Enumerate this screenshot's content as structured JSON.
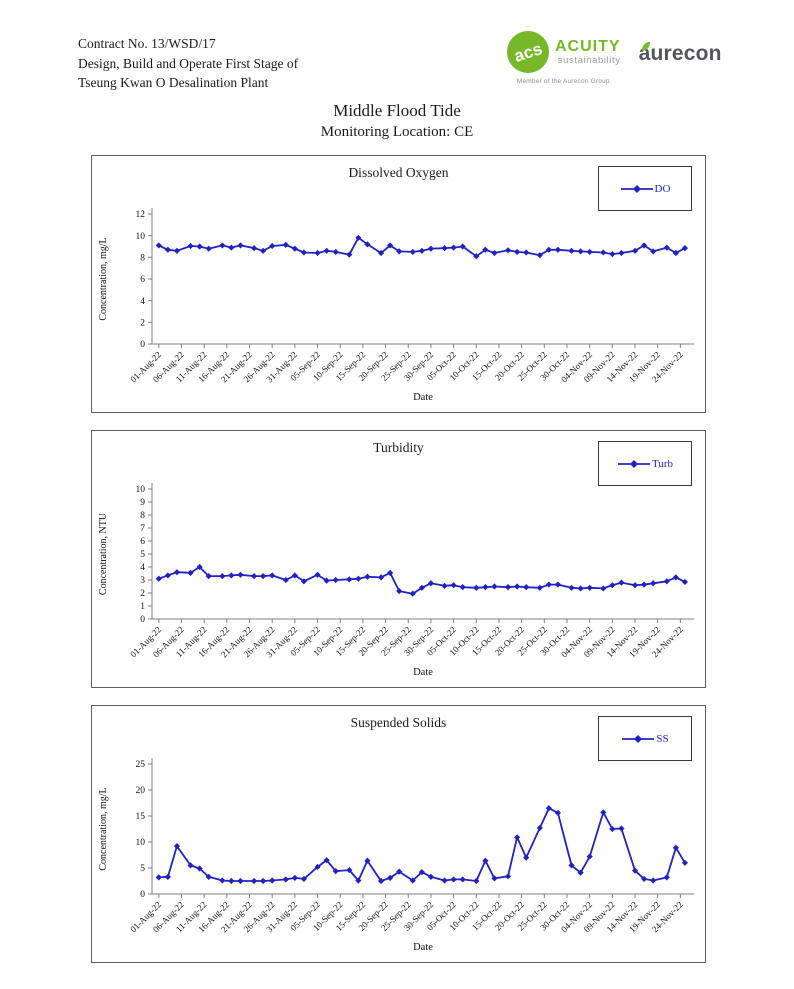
{
  "header": {
    "line1": "Contract No. 13/WSD/17",
    "line2": "Design, Build and Operate First Stage of",
    "line3": "Tseung Kwan O Desalination Plant",
    "logo_acuity": {
      "monogram": "acs",
      "name": "ACUITY",
      "sub": "sustainability",
      "tagline": "Member of the Aurecon Group",
      "green": "#76b82a"
    },
    "logo_aurecon": {
      "name": "aurecon",
      "color": "#53565a",
      "leaf_green": "#76b82a"
    }
  },
  "title": "Middle Flood Tide",
  "subtitle": "Monitoring Location: CE",
  "chart_data": [
    {
      "type": "line",
      "title": "Dissolved Oxygen",
      "legend": "DO",
      "ylabel": "Concentration, mg/L",
      "xlabel": "Date",
      "ylim": [
        0,
        12
      ],
      "ystep": 2,
      "y_tick_labels": [
        "0",
        "2",
        "4",
        "6",
        "8",
        "10",
        "12"
      ],
      "grid": false,
      "legend_position": "top-right",
      "line_color": "#2222c0",
      "x_tick_days": [
        0,
        5,
        10,
        15,
        20,
        25,
        30,
        35,
        40,
        45,
        50,
        55,
        60,
        65,
        70,
        75,
        80,
        85,
        90,
        95,
        100,
        105,
        110,
        115
      ],
      "x_tick_labels": [
        "01-Aug-22",
        "06-Aug-22",
        "11-Aug-22",
        "16-Aug-22",
        "21-Aug-22",
        "26-Aug-22",
        "31-Aug-22",
        "05-Sep-22",
        "10-Sep-22",
        "15-Sep-22",
        "20-Sep-22",
        "25-Sep-22",
        "30-Sep-22",
        "05-Oct-22",
        "10-Oct-22",
        "15-Oct-22",
        "20-Oct-22",
        "25-Oct-22",
        "30-Oct-22",
        "04-Nov-22",
        "09-Nov-22",
        "14-Nov-22",
        "19-Nov-22",
        "24-Nov-22"
      ],
      "sample_days": [
        0,
        2,
        4,
        7,
        9,
        11,
        14,
        16,
        18,
        21,
        23,
        25,
        28,
        30,
        32,
        35,
        37,
        39,
        42,
        44,
        46,
        49,
        51,
        53,
        56,
        58,
        60,
        63,
        65,
        67,
        70,
        72,
        74,
        77,
        79,
        81,
        84,
        86,
        88,
        91,
        93,
        95,
        98,
        100,
        102,
        105,
        107,
        109,
        112,
        114,
        116
      ],
      "values": [
        9.1,
        8.7,
        8.6,
        9.05,
        9.0,
        8.8,
        9.1,
        8.9,
        9.1,
        8.85,
        8.6,
        9.05,
        9.15,
        8.8,
        8.45,
        8.4,
        8.6,
        8.5,
        8.25,
        9.8,
        9.2,
        8.4,
        9.1,
        8.55,
        8.5,
        8.6,
        8.8,
        8.85,
        8.9,
        9.0,
        8.1,
        8.7,
        8.4,
        8.65,
        8.5,
        8.45,
        8.2,
        8.7,
        8.7,
        8.6,
        8.55,
        8.5,
        8.45,
        8.3,
        8.4,
        8.6,
        9.1,
        8.55,
        8.9,
        8.4,
        8.85
      ]
    },
    {
      "type": "line",
      "title": "Turbidity",
      "legend": "Turb",
      "ylabel": "Concentration, NTU",
      "xlabel": "Date",
      "ylim": [
        0,
        10
      ],
      "ystep": 1,
      "y_tick_labels": [
        "0",
        "1",
        "2",
        "3",
        "4",
        "5",
        "6",
        "7",
        "8",
        "9",
        "10"
      ],
      "grid": false,
      "legend_position": "top-right",
      "line_color": "#2222c0",
      "x_tick_days": [
        0,
        5,
        10,
        15,
        20,
        25,
        30,
        35,
        40,
        45,
        50,
        55,
        60,
        65,
        70,
        75,
        80,
        85,
        90,
        95,
        100,
        105,
        110,
        115
      ],
      "x_tick_labels": [
        "01-Aug-22",
        "06-Aug-22",
        "11-Aug-22",
        "16-Aug-22",
        "21-Aug-22",
        "26-Aug-22",
        "31-Aug-22",
        "05-Sep-22",
        "10-Sep-22",
        "15-Sep-22",
        "20-Sep-22",
        "25-Sep-22",
        "30-Sep-22",
        "05-Oct-22",
        "10-Oct-22",
        "15-Oct-22",
        "20-Oct-22",
        "25-Oct-22",
        "30-Oct-22",
        "04-Nov-22",
        "09-Nov-22",
        "14-Nov-22",
        "19-Nov-22",
        "24-Nov-22"
      ],
      "sample_days": [
        0,
        2,
        4,
        7,
        9,
        11,
        14,
        16,
        18,
        21,
        23,
        25,
        28,
        30,
        32,
        35,
        37,
        39,
        42,
        44,
        46,
        49,
        51,
        53,
        56,
        58,
        60,
        63,
        65,
        67,
        70,
        72,
        74,
        77,
        79,
        81,
        84,
        86,
        88,
        91,
        93,
        95,
        98,
        100,
        102,
        105,
        107,
        109,
        112,
        114,
        116
      ],
      "values": [
        3.1,
        3.35,
        3.6,
        3.55,
        4.0,
        3.3,
        3.3,
        3.35,
        3.4,
        3.3,
        3.3,
        3.35,
        3.0,
        3.35,
        2.9,
        3.4,
        2.95,
        3.0,
        3.05,
        3.1,
        3.25,
        3.2,
        3.55,
        2.15,
        1.95,
        2.4,
        2.75,
        2.55,
        2.6,
        2.45,
        2.4,
        2.45,
        2.5,
        2.45,
        2.5,
        2.45,
        2.4,
        2.65,
        2.65,
        2.4,
        2.35,
        2.4,
        2.35,
        2.6,
        2.8,
        2.6,
        2.65,
        2.75,
        2.9,
        3.2,
        2.85
      ]
    },
    {
      "type": "line",
      "title": "Suspended Solids",
      "legend": "SS",
      "ylabel": "Concentration, mg/L",
      "xlabel": "Date",
      "ylim": [
        0,
        25
      ],
      "ystep": 5,
      "y_tick_labels": [
        "0",
        "5",
        "10",
        "15",
        "20",
        "25"
      ],
      "grid": false,
      "legend_position": "top-right",
      "line_color": "#2222c0",
      "x_tick_days": [
        0,
        5,
        10,
        15,
        20,
        25,
        30,
        35,
        40,
        45,
        50,
        55,
        60,
        65,
        70,
        75,
        80,
        85,
        90,
        95,
        100,
        105,
        110,
        115
      ],
      "x_tick_labels": [
        "01-Aug-22",
        "06-Aug-22",
        "11-Aug-22",
        "16-Aug-22",
        "21-Aug-22",
        "26-Aug-22",
        "31-Aug-22",
        "05-Sep-22",
        "10-Sep-22",
        "15-Sep-22",
        "20-Sep-22",
        "25-Sep-22",
        "30-Sep-22",
        "05-Oct-22",
        "10-Oct-22",
        "15-Oct-22",
        "20-Oct-22",
        "25-Oct-22",
        "30-Oct-22",
        "04-Nov-22",
        "09-Nov-22",
        "14-Nov-22",
        "19-Nov-22",
        "24-Nov-22"
      ],
      "sample_days": [
        0,
        2,
        4,
        7,
        9,
        11,
        14,
        16,
        18,
        21,
        23,
        25,
        28,
        30,
        32,
        35,
        37,
        39,
        42,
        44,
        46,
        49,
        51,
        53,
        56,
        58,
        60,
        63,
        65,
        67,
        70,
        72,
        74,
        77,
        79,
        81,
        84,
        86,
        88,
        91,
        93,
        95,
        98,
        100,
        102,
        105,
        107,
        109,
        112,
        114,
        116
      ],
      "values": [
        3.2,
        3.3,
        9.2,
        5.5,
        4.9,
        3.3,
        2.6,
        2.5,
        2.5,
        2.5,
        2.5,
        2.6,
        2.8,
        3.1,
        2.9,
        5.2,
        6.5,
        4.4,
        4.6,
        2.6,
        6.4,
        2.5,
        3.1,
        4.3,
        2.6,
        4.2,
        3.3,
        2.6,
        2.8,
        2.8,
        2.5,
        6.4,
        3.0,
        3.4,
        10.9,
        7.0,
        12.7,
        16.5,
        15.6,
        5.5,
        4.1,
        7.2,
        15.7,
        12.5,
        12.6,
        4.5,
        2.9,
        2.6,
        3.2,
        8.9,
        6.0
      ]
    }
  ]
}
